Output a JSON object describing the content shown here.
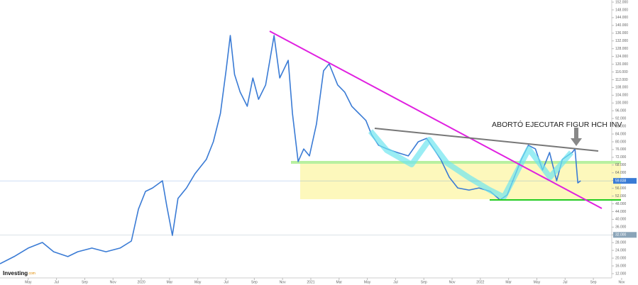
{
  "chart_data": {
    "type": "line",
    "annotation": "ABORTÓ EJECUTAR FIGUR HCH INV",
    "logo": "Investing",
    "logo_suffix": ".com",
    "color": "#3a7bd5",
    "x": [
      2.0,
      3.0,
      4.0,
      5.0,
      5.8,
      6.8,
      7.5,
      8.5,
      9.5,
      10.5,
      11.3,
      11.8,
      12.3,
      12.8,
      13.5,
      13.8,
      14.2,
      14.6,
      15.2,
      15.8,
      16.6,
      17.1,
      17.6,
      18.0,
      18.3,
      18.6,
      19.0,
      19.5,
      19.9,
      20.3,
      20.8,
      21.4,
      21.8,
      22.4,
      22.7,
      23.1,
      23.5,
      23.9,
      24.4,
      24.9,
      25.3,
      25.9,
      26.4,
      26.9,
      27.4,
      27.9,
      28.3,
      28.8,
      29.4,
      30.1,
      30.9,
      31.6,
      32.2,
      32.7,
      33.2,
      33.8,
      34.4,
      35.2,
      35.9,
      36.7,
      37.4,
      37.9,
      38.4,
      38.9,
      39.4,
      39.9,
      40.4,
      40.9,
      41.4,
      41.8,
      42.5,
      42.7,
      42.9,
      43.1
    ],
    "values": [
      17100,
      20800,
      25200,
      28100,
      23300,
      20800,
      23300,
      25200,
      23300,
      25200,
      28800,
      45300,
      54400,
      56200,
      59900,
      47100,
      31700,
      50800,
      56200,
      63500,
      70900,
      80000,
      94600,
      116600,
      134800,
      114700,
      105600,
      98300,
      112900,
      101900,
      109300,
      134800,
      112900,
      122000,
      94600,
      69800,
      76300,
      72700,
      89100,
      116600,
      120200,
      109300,
      105600,
      98300,
      94600,
      91000,
      83700,
      78200,
      76300,
      74500,
      72700,
      80000,
      81800,
      76300,
      70900,
      61700,
      56200,
      55100,
      56200,
      54400,
      50000,
      52600,
      61700,
      70900,
      78200,
      76300,
      65400,
      74500,
      59900,
      70900,
      74500,
      76300,
      58800,
      59900
    ],
    "xlim": [
      2,
      45.3
    ],
    "ylim": [
      12000,
      153100
    ],
    "xticks": [
      {
        "value": 4,
        "label": "May"
      },
      {
        "value": 6,
        "label": "Jul"
      },
      {
        "value": 8,
        "label": "Sep"
      },
      {
        "value": 10,
        "label": "Nov"
      },
      {
        "value": 12,
        "label": "2020"
      },
      {
        "value": 14,
        "label": "Mar"
      },
      {
        "value": 16,
        "label": "May"
      },
      {
        "value": 18,
        "label": "Jul"
      },
      {
        "value": 20,
        "label": "Sep"
      },
      {
        "value": 22,
        "label": "Nov"
      },
      {
        "value": 24,
        "label": "2021"
      },
      {
        "value": 26,
        "label": "Mar"
      },
      {
        "value": 28,
        "label": "May"
      },
      {
        "value": 30,
        "label": "Jul"
      },
      {
        "value": 32,
        "label": "Sep"
      },
      {
        "value": 34,
        "label": "Nov"
      },
      {
        "value": 36,
        "label": "2022"
      },
      {
        "value": 38,
        "label": "Mar"
      },
      {
        "value": 40,
        "label": "May"
      },
      {
        "value": 42,
        "label": "Jul"
      },
      {
        "value": 44,
        "label": "Sep"
      },
      {
        "value": 46,
        "label": "Nov"
      }
    ],
    "yticks": [
      {
        "value": 12000,
        "label": "12.000"
      },
      {
        "value": 16000,
        "label": "16.000"
      },
      {
        "value": 20000,
        "label": "20.000"
      },
      {
        "value": 24000,
        "label": "24.000"
      },
      {
        "value": 28000,
        "label": "28.000"
      },
      {
        "value": 32000,
        "label": "32.000"
      },
      {
        "value": 36000,
        "label": "36.000"
      },
      {
        "value": 40000,
        "label": "40.000"
      },
      {
        "value": 44000,
        "label": "44.000"
      },
      {
        "value": 48000,
        "label": "48.000"
      },
      {
        "value": 52000,
        "label": "52.000"
      },
      {
        "value": 56000,
        "label": "56.000"
      },
      {
        "value": 60000,
        "label": "60.000"
      },
      {
        "value": 64000,
        "label": "64.000"
      },
      {
        "value": 68000,
        "label": "68.000"
      },
      {
        "value": 72000,
        "label": "72.000"
      },
      {
        "value": 76000,
        "label": "76.000"
      },
      {
        "value": 80000,
        "label": "80.000"
      },
      {
        "value": 84000,
        "label": "84.000"
      },
      {
        "value": 88000,
        "label": "88.000"
      },
      {
        "value": 92000,
        "label": "92.000"
      },
      {
        "value": 96000,
        "label": "96.000"
      },
      {
        "value": 100000,
        "label": "100.000"
      },
      {
        "value": 104000,
        "label": "104.000"
      },
      {
        "value": 108000,
        "label": "108.000"
      },
      {
        "value": 112000,
        "label": "112.000"
      },
      {
        "value": 116000,
        "label": "116.000"
      },
      {
        "value": 120000,
        "label": "120.000"
      },
      {
        "value": 124000,
        "label": "124.000"
      },
      {
        "value": 128000,
        "label": "128.000"
      },
      {
        "value": 132000,
        "label": "132.000"
      },
      {
        "value": 136000,
        "label": "136.000"
      },
      {
        "value": 140000,
        "label": "140.000"
      },
      {
        "value": 144000,
        "label": "144.000"
      },
      {
        "value": 148000,
        "label": "148.000"
      },
      {
        "value": 152000,
        "label": "152.000"
      }
    ],
    "price_labels": [
      {
        "value": 59838,
        "label": "59.838",
        "color": "#3a7bd5"
      },
      {
        "value": 32000,
        "label": "32.000",
        "color": "#8aa4b8"
      }
    ]
  }
}
